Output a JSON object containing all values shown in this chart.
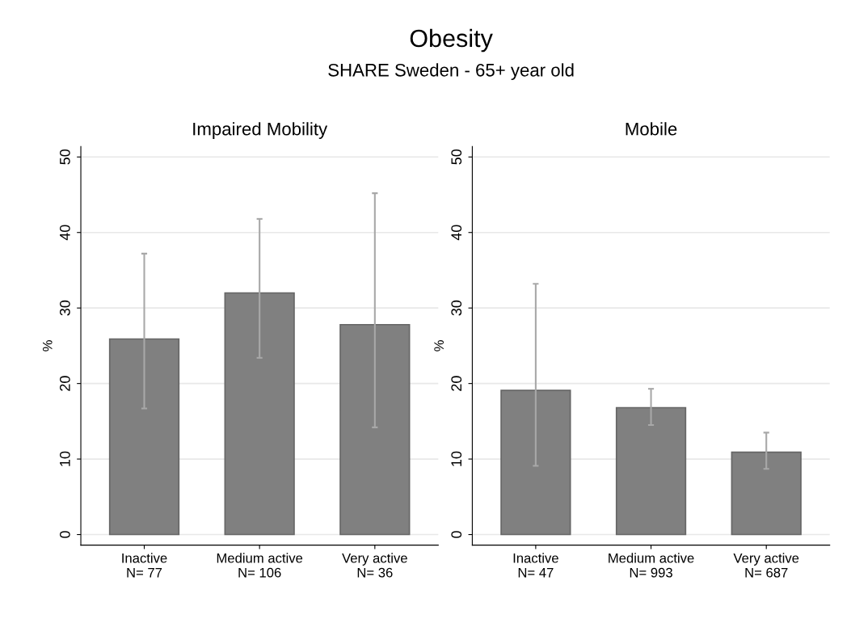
{
  "chart_data": [
    {
      "type": "bar",
      "title": "Impaired Mobility",
      "ylabel": "%",
      "annotations": [
        "Obesity",
        "SHARE Sweden - 65+ year old"
      ],
      "categories": [
        "Inactive\nN= 77",
        "Medium active\nN= 106",
        "Very active\nN= 36"
      ],
      "values": [
        25.9,
        32.0,
        27.8
      ],
      "errors": [
        [
          16.7,
          37.2
        ],
        [
          23.4,
          41.8
        ],
        [
          14.2,
          45.2
        ]
      ],
      "color": "#808080",
      "ylim": [
        -1.4,
        51.4
      ],
      "yticks": [
        0,
        10,
        20,
        30,
        40,
        50
      ],
      "grid": "y"
    },
    {
      "type": "bar",
      "title": "Mobile",
      "ylabel": "%",
      "categories": [
        "Inactive\nN= 47",
        "Medium active\nN= 993",
        "Very active\nN= 687"
      ],
      "values": [
        19.1,
        16.8,
        10.9
      ],
      "errors": [
        [
          9.1,
          33.2
        ],
        [
          14.5,
          19.3
        ],
        [
          8.7,
          13.5
        ]
      ],
      "color": "#808080",
      "ylim": [
        -1.4,
        51.4
      ],
      "yticks": [
        0,
        10,
        20,
        30,
        40,
        50
      ],
      "grid": "y"
    }
  ]
}
